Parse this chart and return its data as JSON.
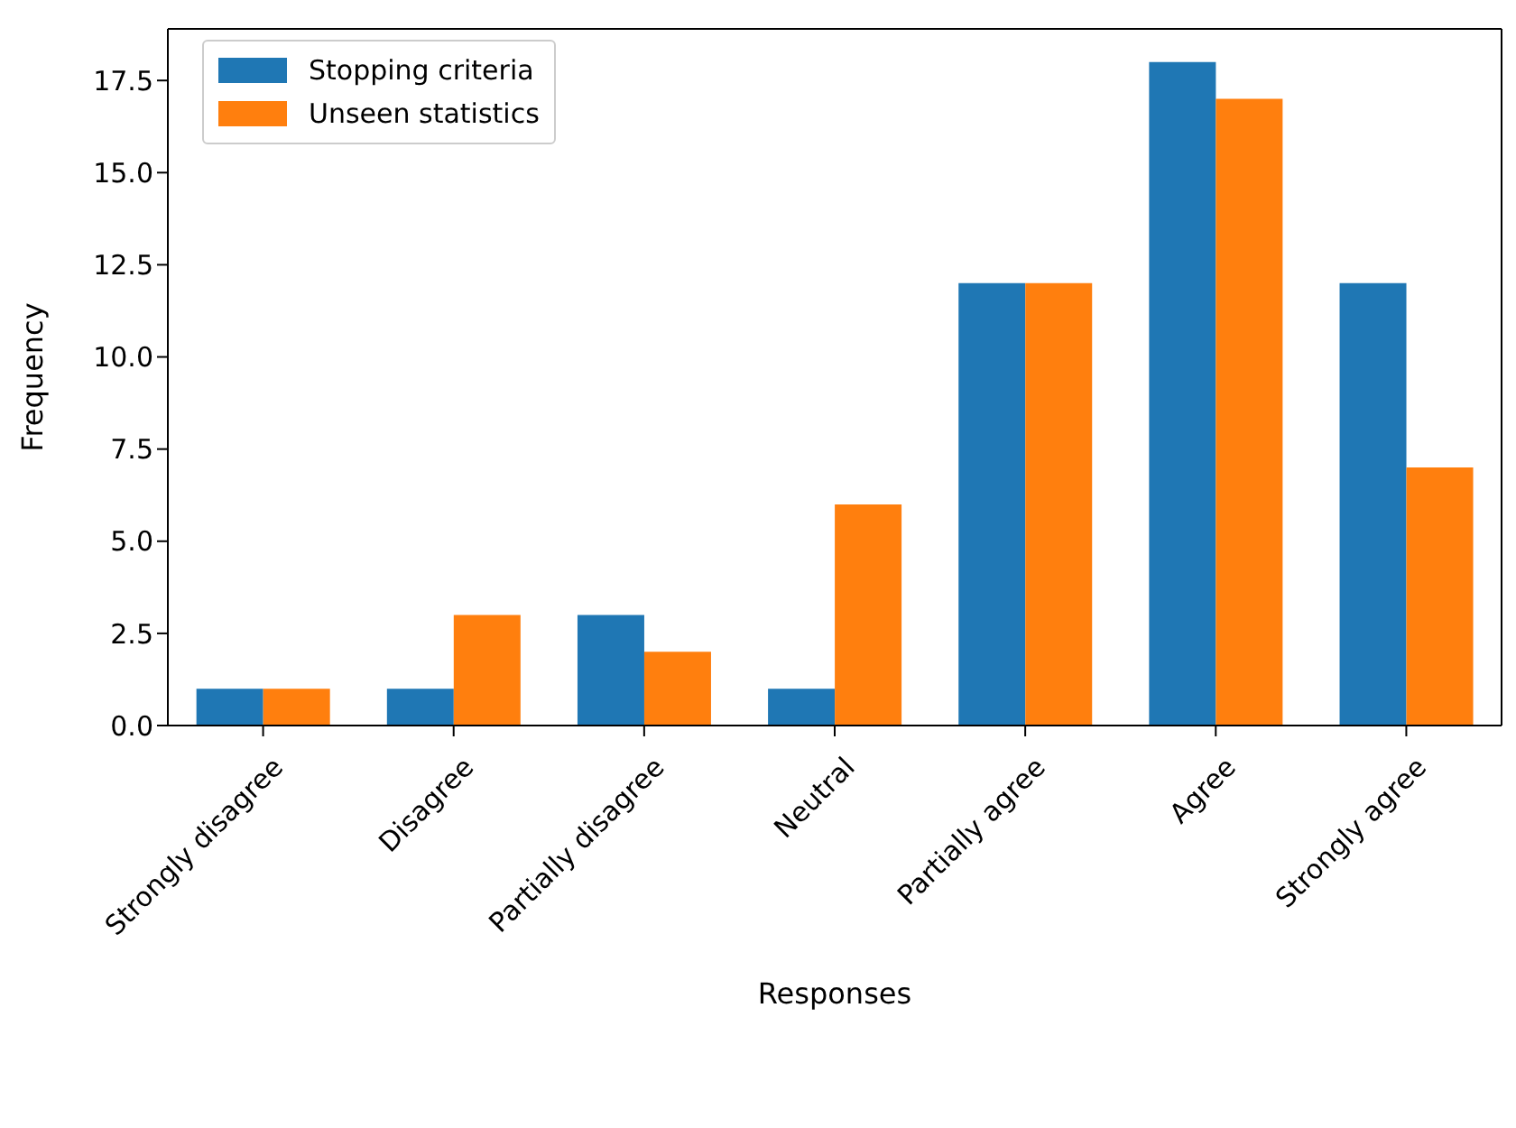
{
  "chart_data": {
    "type": "bar",
    "xlabel": "Responses",
    "ylabel": "Frequency",
    "categories": [
      "Strongly disagree",
      "Disagree",
      "Partially disagree",
      "Neutral",
      "Partially agree",
      "Agree",
      "Strongly agree"
    ],
    "series": [
      {
        "name": "Stopping criteria",
        "color": "#1f77b4",
        "values": [
          1,
          1,
          3,
          1,
          12,
          18,
          12
        ]
      },
      {
        "name": "Unseen statistics",
        "color": "#ff7f0e",
        "values": [
          1,
          3,
          2,
          6,
          12,
          17,
          7
        ]
      }
    ],
    "ylim": [
      0,
      18.9
    ],
    "yticks": [
      {
        "value": 0,
        "label": "0.0"
      },
      2.5,
      {
        "value": 5,
        "label": "5.0"
      },
      7.5,
      {
        "value": 10,
        "label": "10.0"
      },
      12.5,
      {
        "value": 15,
        "label": "15.0"
      },
      17.5
    ],
    "grid": false,
    "legend": "top left"
  }
}
